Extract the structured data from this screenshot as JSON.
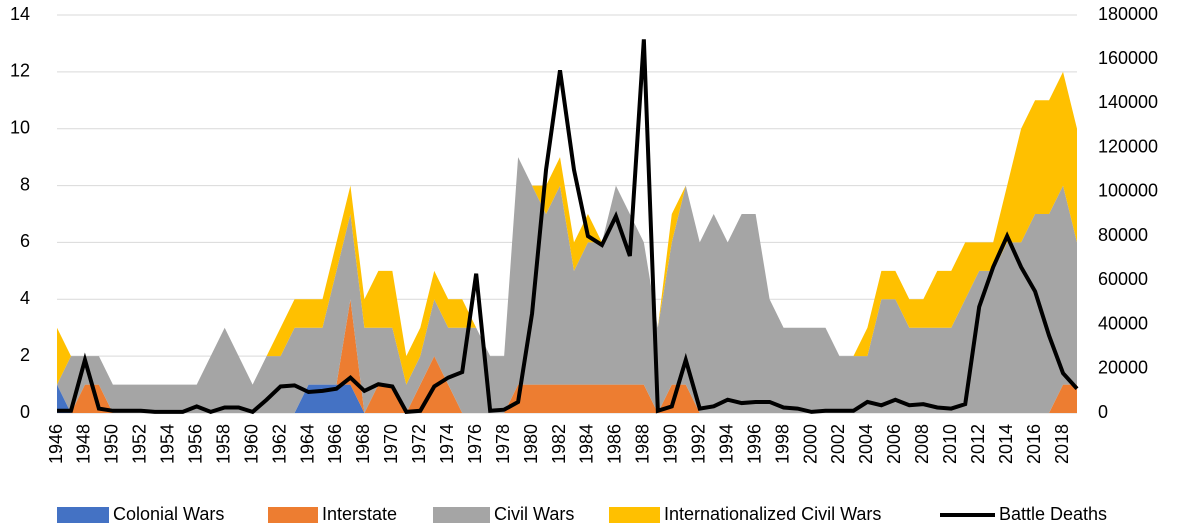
{
  "chart_data": {
    "type": "stacked-area-line",
    "categories": [
      "1946",
      null,
      "1948",
      null,
      "1950",
      null,
      "1952",
      null,
      "1954",
      null,
      "1956",
      null,
      "1958",
      null,
      "1960",
      null,
      "1962",
      null,
      "1964",
      null,
      "1966",
      null,
      "1968",
      null,
      "1970",
      null,
      "1972",
      null,
      "1974",
      null,
      "1976",
      null,
      "1978",
      null,
      "1980",
      null,
      "1982",
      null,
      "1984",
      null,
      "1986",
      null,
      "1988",
      null,
      "1990",
      null,
      "1992",
      null,
      "1994",
      null,
      "1996",
      null,
      "1998",
      null,
      "2000",
      null,
      "2002",
      null,
      "2004",
      null,
      "2006",
      null,
      "2008",
      null,
      "2010",
      null,
      "2012",
      null,
      "2014",
      null,
      "2016",
      null,
      "2018",
      null
    ],
    "series": [
      {
        "name": "Colonial Wars",
        "color": "#4472c4",
        "values": [
          1,
          0,
          0,
          0,
          0,
          0,
          0,
          0,
          0,
          0,
          0,
          0,
          0,
          0,
          0,
          0,
          0,
          0,
          1,
          1,
          1,
          1,
          0,
          0,
          0,
          0,
          0,
          0,
          0,
          0,
          0,
          0,
          0,
          0,
          0,
          0,
          0,
          0,
          0,
          0,
          0,
          0,
          0,
          0,
          0,
          0,
          0,
          0,
          0,
          0,
          0,
          0,
          0,
          0,
          0,
          0,
          0,
          0,
          0,
          0,
          0,
          0,
          0,
          0,
          0,
          0,
          0,
          0,
          0,
          0,
          0,
          0,
          0,
          0
        ]
      },
      {
        "name": "Interstate",
        "color": "#ed7d31",
        "values": [
          0,
          0,
          1,
          1,
          0,
          0,
          0,
          0,
          0,
          0,
          0,
          0,
          0,
          0,
          0,
          0,
          0,
          0,
          0,
          0,
          0,
          3,
          0,
          1,
          1,
          0,
          1,
          2,
          1,
          0,
          0,
          0,
          0,
          1,
          1,
          1,
          1,
          1,
          1,
          1,
          1,
          1,
          1,
          0,
          1,
          1,
          0,
          0,
          0,
          0,
          0,
          0,
          0,
          0,
          0,
          0,
          0,
          0,
          0,
          0,
          0,
          0,
          0,
          0,
          0,
          0,
          0,
          0,
          0,
          0,
          0,
          0,
          1,
          1
        ]
      },
      {
        "name": "Civil Wars",
        "color": "#a5a5a5",
        "values": [
          0,
          2,
          1,
          1,
          1,
          1,
          1,
          1,
          1,
          1,
          1,
          2,
          3,
          2,
          1,
          2,
          2,
          3,
          2,
          2,
          4,
          3,
          3,
          2,
          2,
          1,
          1,
          2,
          2,
          3,
          3,
          2,
          2,
          8,
          7,
          6,
          7,
          4,
          5,
          5,
          7,
          6,
          5,
          3,
          5,
          7,
          6,
          7,
          6,
          7,
          7,
          4,
          3,
          3,
          3,
          3,
          2,
          2,
          2,
          4,
          4,
          3,
          3,
          3,
          3,
          4,
          5,
          5,
          6,
          6,
          7,
          7,
          7,
          5
        ]
      },
      {
        "name": "Internationalized Civil Wars",
        "color": "#ffc000",
        "values": [
          2,
          0,
          0,
          0,
          0,
          0,
          0,
          0,
          0,
          0,
          0,
          0,
          0,
          0,
          0,
          0,
          1,
          1,
          1,
          1,
          1,
          1,
          1,
          2,
          2,
          1,
          1,
          1,
          1,
          1,
          0,
          0,
          0,
          0,
          0,
          1,
          1,
          1,
          1,
          0,
          0,
          0,
          0,
          0,
          1,
          0,
          0,
          0,
          0,
          0,
          0,
          0,
          0,
          0,
          0,
          0,
          0,
          0,
          1,
          1,
          1,
          1,
          1,
          2,
          2,
          2,
          1,
          1,
          2,
          4,
          4,
          4,
          4,
          4
        ]
      },
      {
        "name": "Battle Deaths",
        "color": "#000000",
        "axis": "y2",
        "values": [
          1000,
          1000,
          24000,
          2000,
          1000,
          1000,
          1000,
          500,
          500,
          500,
          3000,
          500,
          2500,
          2500,
          500,
          6000,
          12000,
          12500,
          9500,
          10000,
          11000,
          16000,
          10000,
          13000,
          12000,
          500,
          1000,
          12000,
          16000,
          18500,
          63000,
          1000,
          1500,
          5000,
          45000,
          110000,
          155000,
          110000,
          80000,
          76000,
          89000,
          71000,
          169000,
          1000,
          3000,
          24000,
          2000,
          3000,
          6000,
          4500,
          5000,
          5000,
          2500,
          2000,
          500,
          1000,
          1000,
          1000,
          5000,
          3500,
          6000,
          3500,
          4000,
          2500,
          2000,
          4000,
          48000,
          66000,
          80000,
          66000,
          55000,
          35000,
          18000,
          11000
        ]
      }
    ],
    "ylim": [
      0,
      14
    ],
    "yticks": [
      0,
      2,
      4,
      6,
      8,
      10,
      12,
      14
    ],
    "y2lim": [
      0,
      180000
    ],
    "y2ticks": [
      0,
      20000,
      40000,
      60000,
      80000,
      100000,
      120000,
      140000,
      160000,
      180000
    ],
    "grid": true,
    "legend": "bottom"
  }
}
